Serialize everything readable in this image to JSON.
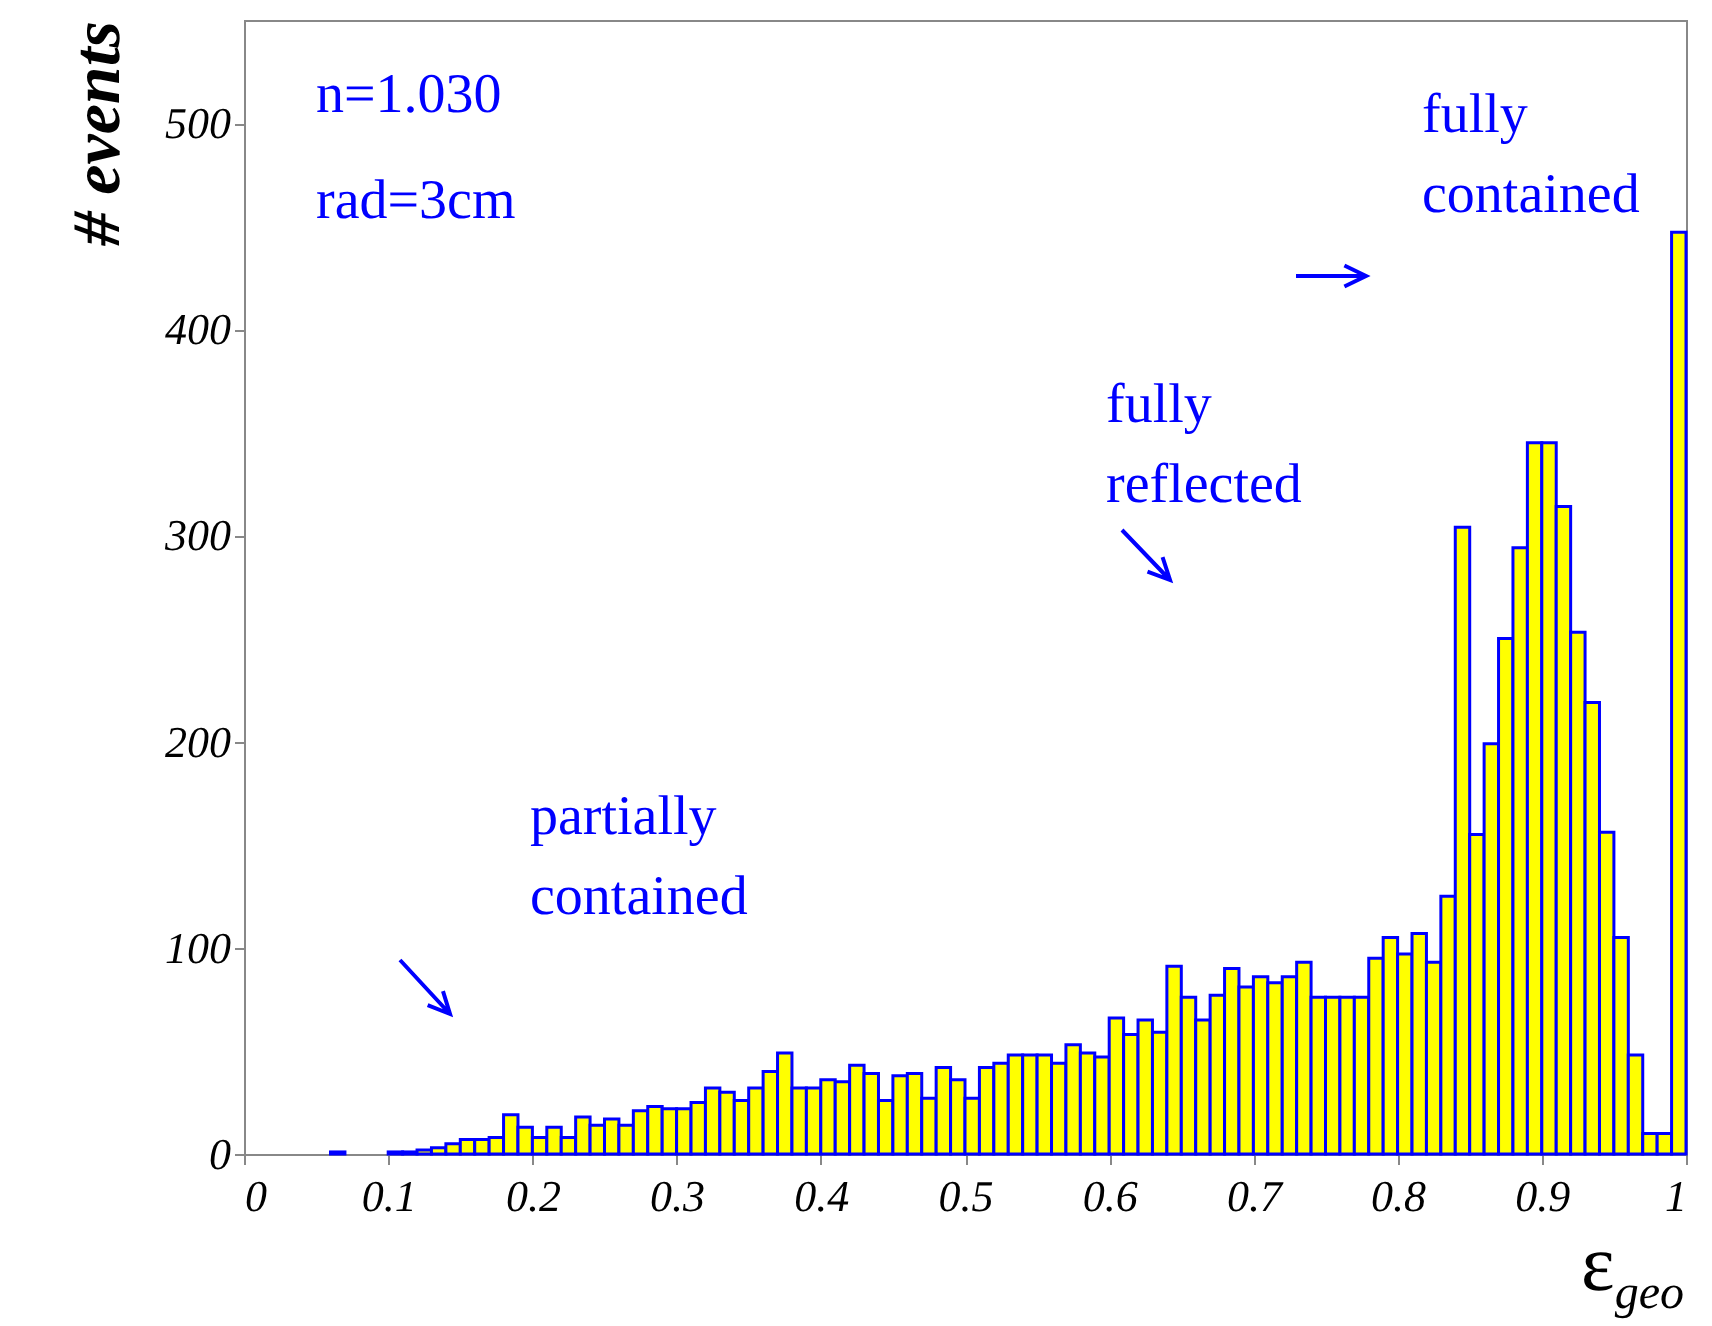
{
  "chart_data": {
    "type": "histogram",
    "xlabel": "ε$_{geo}$",
    "ylabel": "# events",
    "color": "#ffff00",
    "bins": [
      0,
      0.01,
      0.02,
      0.03,
      0.04,
      0.05,
      0.06,
      0.07,
      0.08,
      0.09,
      0.1,
      0.11,
      0.12,
      0.13,
      0.14,
      0.15,
      0.16,
      0.17,
      0.18,
      0.19,
      0.2,
      0.21,
      0.22,
      0.23,
      0.24,
      0.25,
      0.26,
      0.27,
      0.28,
      0.29,
      0.3,
      0.31,
      0.32,
      0.33,
      0.34,
      0.35,
      0.36,
      0.37,
      0.38,
      0.39,
      0.4,
      0.41,
      0.42,
      0.43,
      0.44,
      0.45,
      0.46,
      0.47,
      0.48,
      0.49,
      0.5,
      0.51,
      0.52,
      0.53,
      0.54,
      0.55,
      0.56,
      0.57,
      0.58,
      0.59,
      0.6,
      0.61,
      0.62,
      0.63,
      0.64,
      0.65,
      0.66,
      0.67,
      0.68,
      0.69,
      0.7,
      0.71,
      0.72,
      0.73,
      0.74,
      0.75,
      0.76,
      0.77,
      0.78,
      0.79,
      0.8,
      0.81,
      0.82,
      0.83,
      0.84,
      0.85,
      0.86,
      0.87,
      0.88,
      0.89,
      0.9,
      0.91,
      0.92,
      0.93,
      0.94,
      0.95,
      0.96,
      0.97,
      0.98,
      0.99,
      1
    ],
    "values": [
      0,
      0,
      0,
      0,
      0,
      0,
      1,
      0,
      0,
      0,
      1,
      1,
      2,
      3,
      5,
      7,
      7,
      8,
      19,
      13,
      8,
      13,
      8,
      18,
      14,
      17,
      14,
      21,
      23,
      22,
      22,
      25,
      32,
      30,
      26,
      32,
      40,
      49,
      32,
      32,
      36,
      35,
      43,
      39,
      26,
      38,
      39,
      27,
      42,
      36,
      27,
      42,
      44,
      48,
      48,
      48,
      44,
      53,
      49,
      47,
      66,
      58,
      65,
      59,
      91,
      76,
      65,
      77,
      90,
      81,
      86,
      83,
      86,
      93,
      76,
      76,
      76,
      76,
      95,
      105,
      97,
      107,
      93,
      125,
      304,
      155,
      199,
      250,
      294,
      345,
      345,
      314,
      253,
      219,
      156,
      105,
      48,
      10,
      10,
      447
    ],
    "xlim": [
      0,
      1
    ],
    "xticks": [
      0,
      0.1,
      0.2,
      0.3,
      0.4,
      0.5,
      0.6,
      0.7,
      0.8,
      0.9,
      1
    ],
    "ylim": [
      0,
      550
    ],
    "yticks": [
      0,
      100,
      200,
      300,
      400,
      500
    ],
    "annotations": [
      "n=1.030",
      "rad=3cm",
      "partially contained",
      "fully reflected",
      "fully contained"
    ]
  }
}
